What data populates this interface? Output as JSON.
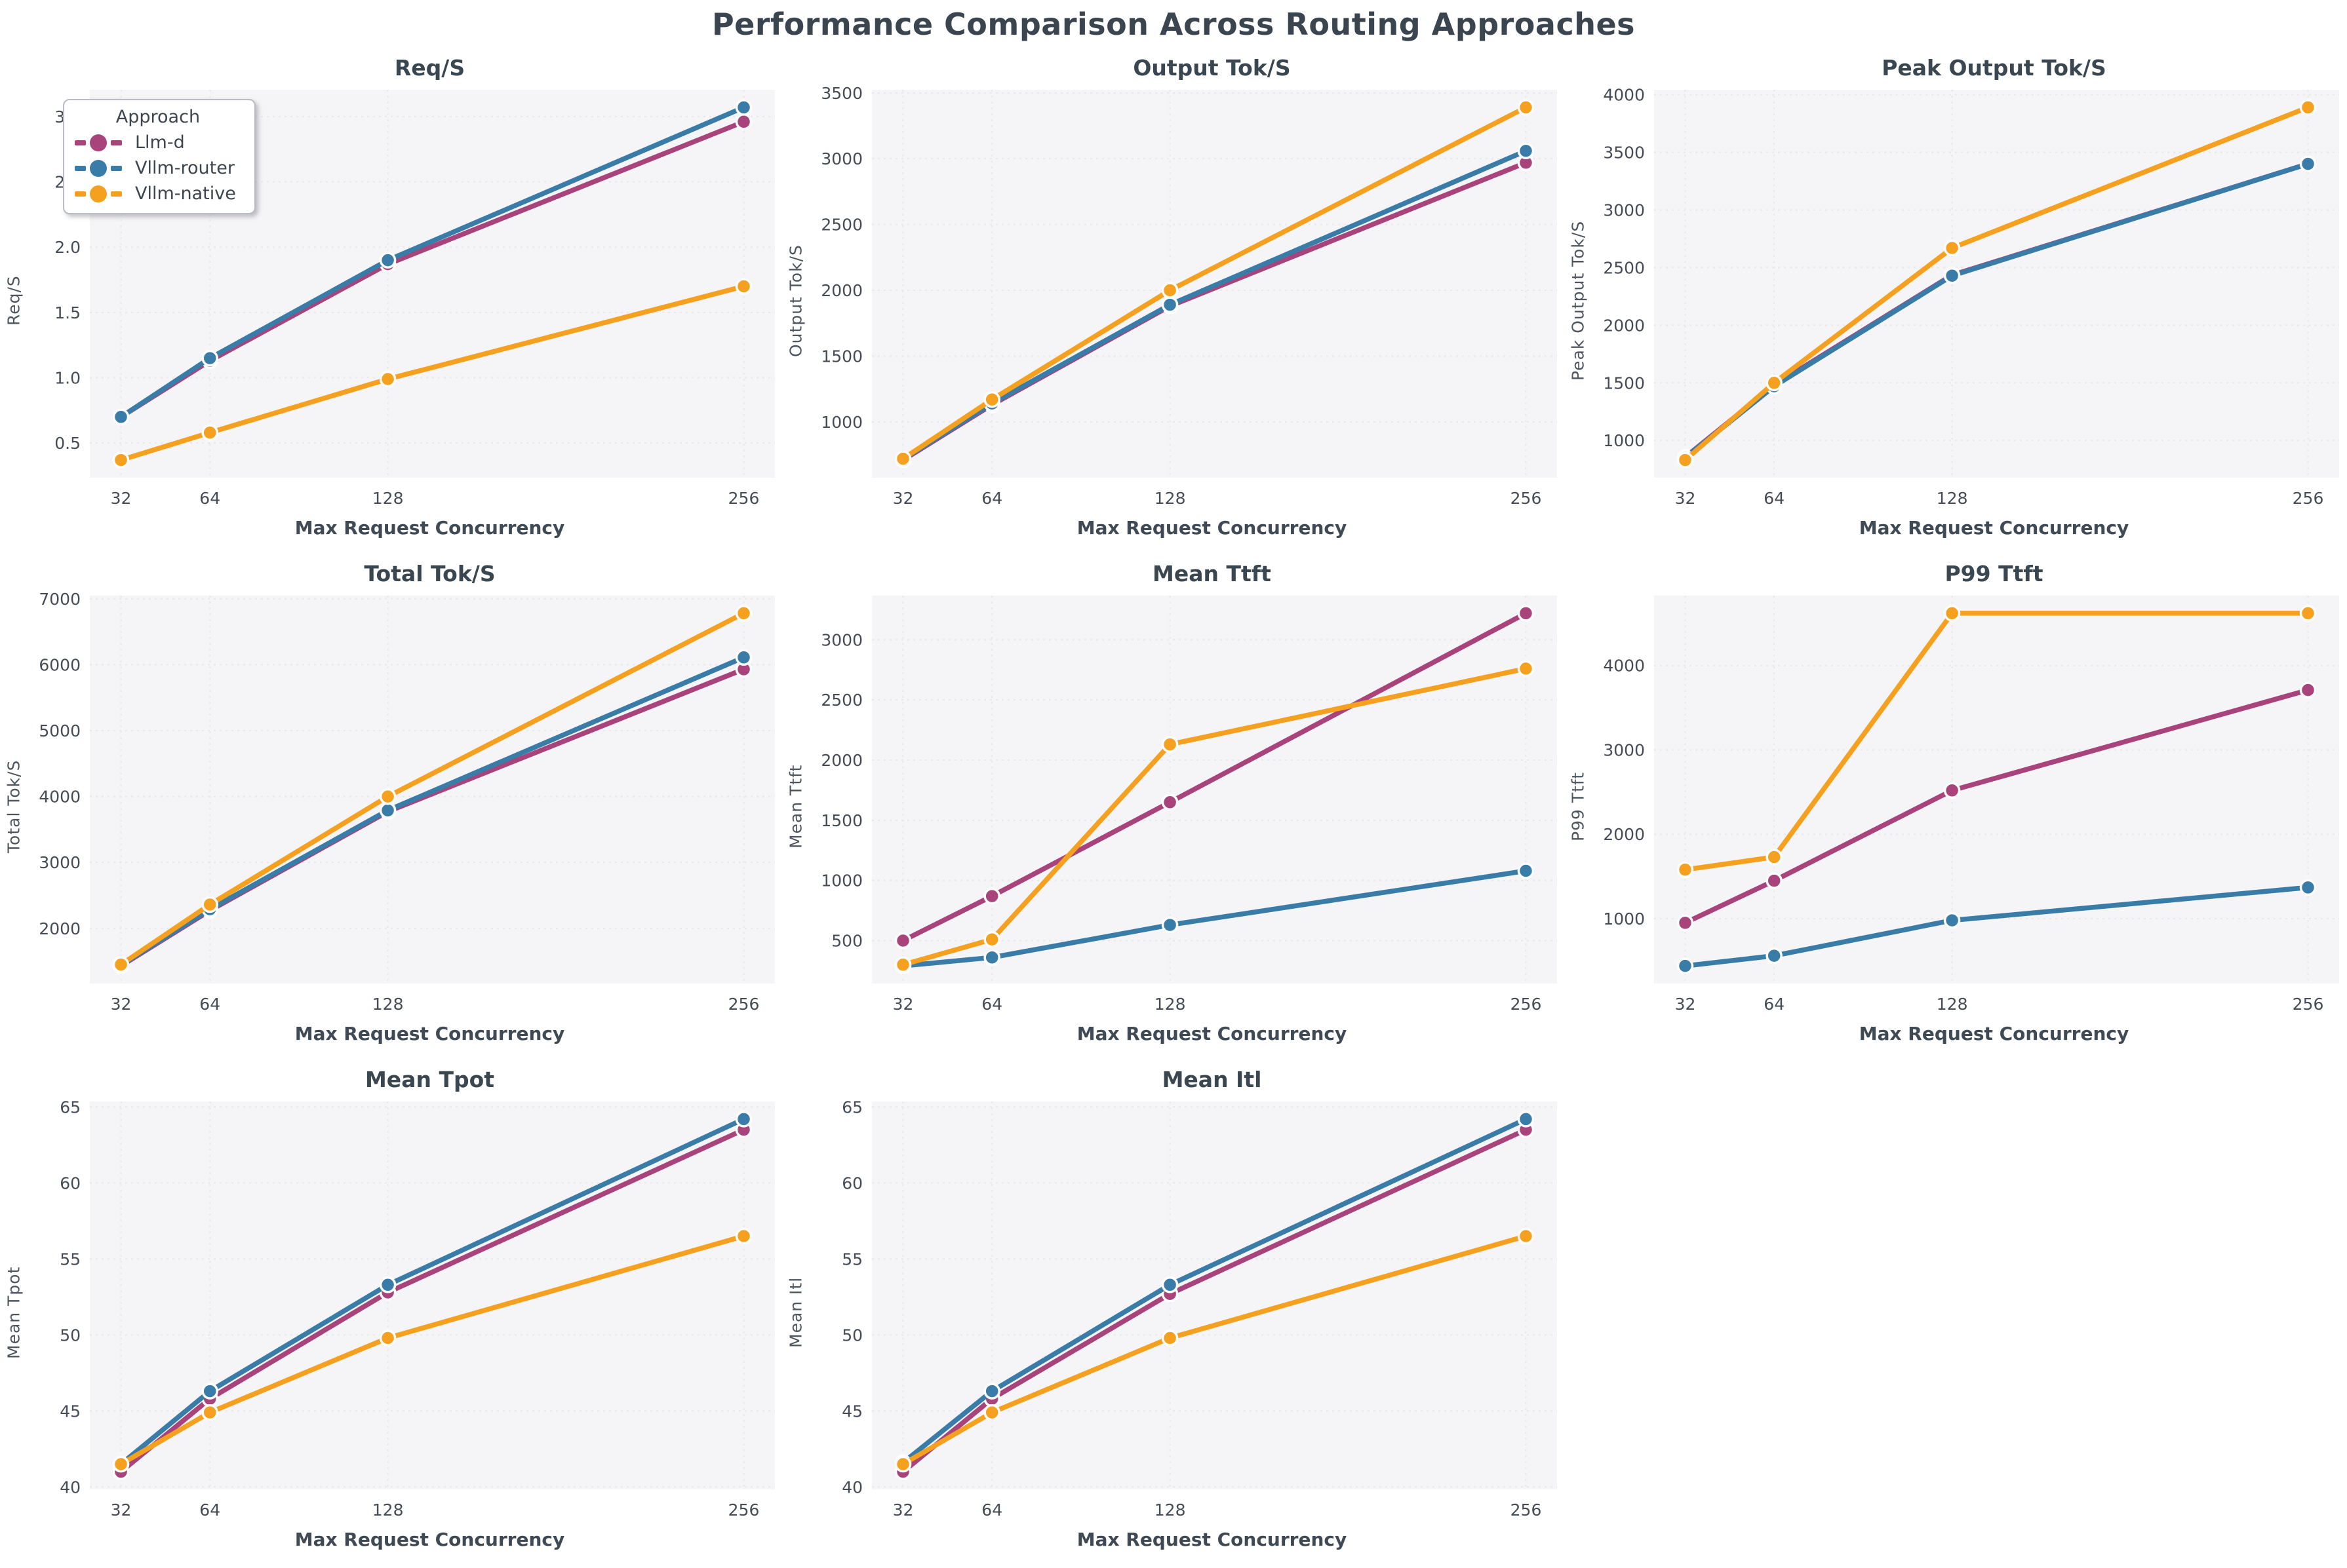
{
  "page": {
    "title": "Performance Comparison Across Routing Approaches"
  },
  "legend": {
    "title": "Approach",
    "items": [
      {
        "label": "Llm-d",
        "color": "#A8437B"
      },
      {
        "label": "Vllm-router",
        "color": "#3A7CA8"
      },
      {
        "label": "Vllm-native",
        "color": "#F5A01E"
      }
    ]
  },
  "axis": {
    "xlabel": "Max Request Concurrency",
    "xticks": [
      32,
      64,
      128,
      256
    ]
  },
  "chart_data": [
    {
      "type": "line",
      "title": "Req/S",
      "xlabel": "Max Request Concurrency",
      "ylabel": "Req/S",
      "x": [
        32,
        64,
        128,
        256
      ],
      "yticks": [
        0.5,
        1.0,
        1.5,
        2.0,
        2.5,
        3.0
      ],
      "ytick_decimals": 1,
      "grid": true,
      "legend_position": "upper left",
      "series": [
        {
          "name": "Llm-d",
          "values": [
            0.7,
            1.13,
            1.87,
            2.96
          ]
        },
        {
          "name": "Vllm-router",
          "values": [
            0.7,
            1.15,
            1.9,
            3.07
          ]
        },
        {
          "name": "Vllm-native",
          "values": [
            0.37,
            0.58,
            0.99,
            1.7
          ]
        }
      ]
    },
    {
      "type": "line",
      "title": "Output Tok/S",
      "xlabel": "Max Request Concurrency",
      "ylabel": "Output Tok/S",
      "x": [
        32,
        64,
        128,
        256
      ],
      "yticks": [
        1000,
        1500,
        2000,
        2500,
        3000,
        3500
      ],
      "ytick_decimals": 0,
      "grid": true,
      "series": [
        {
          "name": "Llm-d",
          "values": [
            710,
            1130,
            1880,
            2970
          ]
        },
        {
          "name": "Vllm-router",
          "values": [
            715,
            1140,
            1890,
            3060
          ]
        },
        {
          "name": "Vllm-native",
          "values": [
            720,
            1170,
            2000,
            3390
          ]
        }
      ]
    },
    {
      "type": "line",
      "title": "Peak Output Tok/S",
      "xlabel": "Max Request Concurrency",
      "ylabel": "Peak Output Tok/S",
      "x": [
        32,
        64,
        128,
        256
      ],
      "yticks": [
        1000,
        1500,
        2000,
        2500,
        3000,
        3500,
        4000
      ],
      "ytick_decimals": 0,
      "grid": true,
      "series": [
        {
          "name": "Llm-d",
          "values": [
            855,
            1480,
            2435,
            3400
          ]
        },
        {
          "name": "Vllm-router",
          "values": [
            850,
            1470,
            2430,
            3400
          ]
        },
        {
          "name": "Vllm-native",
          "values": [
            830,
            1500,
            2670,
            3890
          ]
        }
      ]
    },
    {
      "type": "line",
      "title": "Total Tok/S",
      "xlabel": "Max Request Concurrency",
      "ylabel": "Total Tok/S",
      "x": [
        32,
        64,
        128,
        256
      ],
      "yticks": [
        2000,
        3000,
        4000,
        5000,
        6000,
        7000
      ],
      "ytick_decimals": 0,
      "grid": true,
      "series": [
        {
          "name": "Llm-d",
          "values": [
            1430,
            2270,
            3770,
            5930
          ]
        },
        {
          "name": "Vllm-router",
          "values": [
            1440,
            2290,
            3790,
            6110
          ]
        },
        {
          "name": "Vllm-native",
          "values": [
            1450,
            2360,
            4000,
            6780
          ]
        }
      ]
    },
    {
      "type": "line",
      "title": "Mean Ttft",
      "xlabel": "Max Request Concurrency",
      "ylabel": "Mean Ttft",
      "x": [
        32,
        64,
        128,
        256
      ],
      "yticks": [
        500,
        1000,
        1500,
        2000,
        2500,
        3000
      ],
      "ytick_decimals": 0,
      "grid": true,
      "series": [
        {
          "name": "Llm-d",
          "values": [
            500,
            870,
            1650,
            3220
          ]
        },
        {
          "name": "Vllm-router",
          "values": [
            290,
            360,
            630,
            1080
          ]
        },
        {
          "name": "Vllm-native",
          "values": [
            300,
            510,
            2130,
            2760
          ]
        }
      ]
    },
    {
      "type": "line",
      "title": "P99 Ttft",
      "xlabel": "Max Request Concurrency",
      "ylabel": "P99 Ttft",
      "x": [
        32,
        64,
        128,
        256
      ],
      "yticks": [
        1000,
        2000,
        3000,
        4000
      ],
      "ytick_decimals": 0,
      "grid": true,
      "series": [
        {
          "name": "Llm-d",
          "values": [
            950,
            1450,
            2520,
            3710
          ]
        },
        {
          "name": "Vllm-router",
          "values": [
            440,
            560,
            980,
            1370
          ]
        },
        {
          "name": "Vllm-native",
          "values": [
            1580,
            1730,
            4620,
            4620
          ]
        }
      ]
    },
    {
      "type": "line",
      "title": "Mean Tpot",
      "xlabel": "Max Request Concurrency",
      "ylabel": "Mean Tpot",
      "x": [
        32,
        64,
        128,
        256
      ],
      "yticks": [
        40,
        45,
        50,
        55,
        60,
        65
      ],
      "ytick_decimals": 0,
      "grid": true,
      "series": [
        {
          "name": "Llm-d",
          "values": [
            41.0,
            45.8,
            52.8,
            63.5
          ]
        },
        {
          "name": "Vllm-router",
          "values": [
            41.5,
            46.3,
            53.3,
            64.2
          ]
        },
        {
          "name": "Vllm-native",
          "values": [
            41.5,
            44.9,
            49.8,
            56.5
          ]
        }
      ]
    },
    {
      "type": "line",
      "title": "Mean Itl",
      "xlabel": "Max Request Concurrency",
      "ylabel": "Mean Itl",
      "x": [
        32,
        64,
        128,
        256
      ],
      "yticks": [
        40,
        45,
        50,
        55,
        60,
        65
      ],
      "ytick_decimals": 0,
      "grid": true,
      "series": [
        {
          "name": "Llm-d",
          "values": [
            41.0,
            45.8,
            52.7,
            63.5
          ]
        },
        {
          "name": "Vllm-router",
          "values": [
            41.6,
            46.3,
            53.3,
            64.2
          ]
        },
        {
          "name": "Vllm-native",
          "values": [
            41.5,
            44.9,
            49.8,
            56.5
          ]
        }
      ]
    }
  ]
}
